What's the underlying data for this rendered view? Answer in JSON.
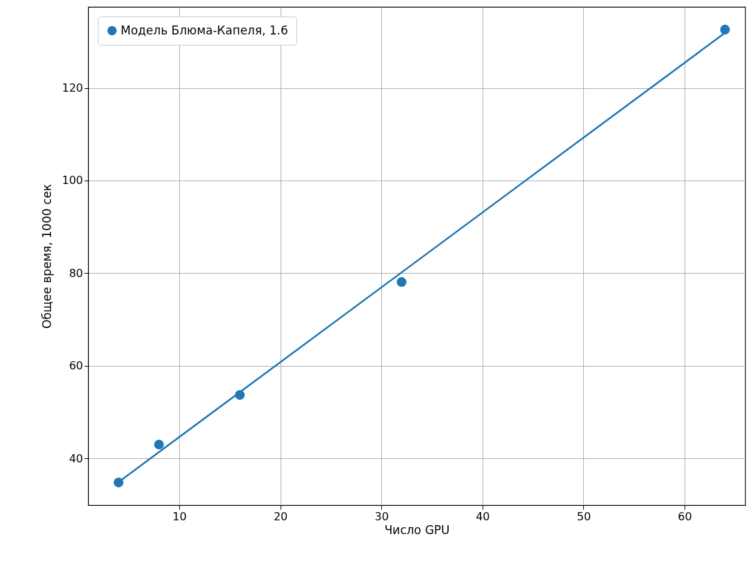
{
  "chart_data": {
    "type": "scatter",
    "xlabel": "Число GPU",
    "ylabel": "Общее время, 1000 сек",
    "xlim": [
      1,
      66
    ],
    "ylim": [
      29.9,
      137.5
    ],
    "xticks": [
      10,
      20,
      30,
      40,
      50,
      60
    ],
    "yticks": [
      40,
      60,
      80,
      100,
      120
    ],
    "grid": true,
    "legend": "top left",
    "series": [
      {
        "name": "Модель Блюма-Капеля, 1.6",
        "marker": "circle",
        "color": "#1f77b4",
        "x": [
          4,
          8,
          16,
          32,
          64
        ],
        "values": [
          34.8,
          43.0,
          53.7,
          78.1,
          132.6
        ]
      },
      {
        "type": "line",
        "color": "#1f77b4",
        "line_style": "solid",
        "x": [
          4,
          64
        ],
        "values": [
          34.9,
          131.9
        ]
      }
    ]
  }
}
